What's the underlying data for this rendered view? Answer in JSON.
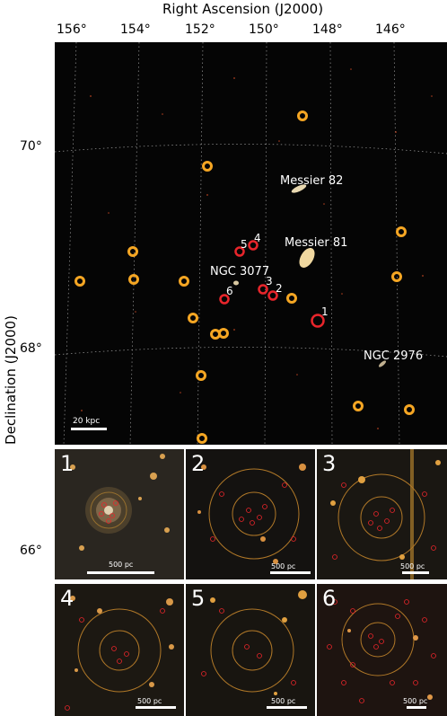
{
  "axes": {
    "x_title": "Right Ascension (J2000)",
    "y_title": "Declination (J2000)",
    "ra_ticks": [
      "156°",
      "154°",
      "152°",
      "150°",
      "148°",
      "146°"
    ],
    "dec_ticks": [
      "70°",
      "68°",
      "66°"
    ]
  },
  "sky_labels": {
    "m82": "Messier 82",
    "m81": "Messier 81",
    "ngc3077": "NGC 3077",
    "ngc2976": "NGC 2976"
  },
  "markers": {
    "m1": "1",
    "m2": "2",
    "m3": "3",
    "m4": "4",
    "m5": "5",
    "m6": "6"
  },
  "scale_bar": "20 kpc",
  "panels": [
    {
      "number": "1",
      "scale": "500 pc"
    },
    {
      "number": "2",
      "scale": "500 pc"
    },
    {
      "number": "3",
      "scale": "500 pc"
    },
    {
      "number": "4",
      "scale": "500 pc"
    },
    {
      "number": "5",
      "scale": "500 pc"
    },
    {
      "number": "6",
      "scale": "500 pc"
    }
  ],
  "colors": {
    "orange_marker": "#f5a623",
    "red_marker": "#e8252b",
    "grid": "#9a9a9a"
  }
}
